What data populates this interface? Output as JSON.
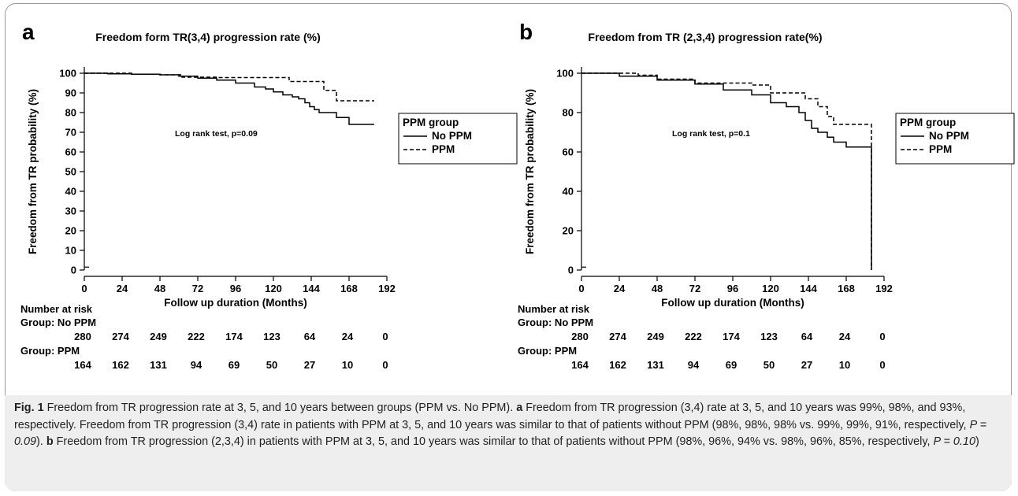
{
  "chart_data": [
    {
      "type": "line",
      "panel_label": "a",
      "title": "Freedom form TR(3,4) progression rate (%)",
      "xlabel": "Follow up duration (Months)",
      "ylabel": "Freedom from TR probability (%)",
      "xlim": [
        0,
        192
      ],
      "ylim": [
        0,
        100
      ],
      "x_ticks": [
        0,
        24,
        48,
        72,
        96,
        120,
        144,
        168,
        192
      ],
      "y_ticks": [
        0,
        10,
        20,
        30,
        40,
        50,
        60,
        70,
        80,
        90,
        100
      ],
      "annotation": "Log rank test, p=0.09",
      "legend": {
        "title": "PPM group",
        "position": "right",
        "entries": [
          {
            "label": "No PPM",
            "style": "solid"
          },
          {
            "label": "PPM",
            "style": "dashed"
          }
        ]
      },
      "series": [
        {
          "name": "No PPM",
          "style": "solid",
          "x": [
            0,
            15,
            30,
            48,
            60,
            72,
            84,
            96,
            108,
            115,
            120,
            126,
            132,
            136,
            140,
            143,
            146,
            149,
            152,
            160,
            164,
            168,
            184
          ],
          "y": [
            100,
            99.7,
            99.5,
            99.2,
            98.5,
            97.5,
            96.5,
            95,
            93,
            92,
            90.5,
            89,
            88,
            87,
            85,
            83,
            81.5,
            80,
            80,
            77.5,
            77.5,
            74,
            74
          ]
        },
        {
          "name": "PPM",
          "style": "dashed",
          "x": [
            0,
            30,
            48,
            62,
            84,
            112,
            130,
            145,
            152,
            156,
            160,
            162,
            184
          ],
          "y": [
            100,
            99.5,
            99.2,
            98,
            97.8,
            97.8,
            95.8,
            95.8,
            91.3,
            91.3,
            86,
            86,
            86
          ]
        }
      ],
      "risk_table": {
        "title": "Number at risk",
        "groups": [
          {
            "label": "Group: No PPM",
            "values": [
              "280",
              "274",
              "249",
              "222",
              "174",
              "123",
              "64",
              "24",
              "0"
            ]
          },
          {
            "label": "Group: PPM",
            "values": [
              "164",
              "162",
              "131",
              "94",
              "69",
              "50",
              "27",
              "10",
              "0"
            ]
          }
        ]
      }
    },
    {
      "type": "line",
      "panel_label": "b",
      "title": "Freedom from TR (2,3,4) progression rate(%)",
      "xlabel": "Follow up duration (Months)",
      "ylabel": "Freedom from TR probability (%)",
      "xlim": [
        0,
        192
      ],
      "ylim": [
        0,
        100
      ],
      "x_ticks": [
        0,
        24,
        48,
        72,
        96,
        120,
        144,
        168,
        192
      ],
      "y_ticks": [
        0,
        20,
        40,
        60,
        80,
        100
      ],
      "annotation": "Log rank test, p=0.1",
      "legend": {
        "title": "PPM group",
        "position": "right",
        "entries": [
          {
            "label": "No PPM",
            "style": "solid"
          },
          {
            "label": "PPM",
            "style": "dashed"
          }
        ]
      },
      "series": [
        {
          "name": "No PPM",
          "style": "solid",
          "x": [
            0,
            24,
            48,
            72,
            90,
            108,
            120,
            130,
            138,
            142,
            146,
            150,
            156,
            160,
            168,
            184
          ],
          "y": [
            100,
            98.5,
            96.5,
            94.5,
            91.5,
            89,
            85,
            83,
            80,
            76,
            72,
            70,
            67.5,
            65,
            62.5,
            62.5
          ],
          "drop_to": 0
        },
        {
          "name": "PPM",
          "style": "dashed",
          "x": [
            0,
            36,
            48,
            72,
            96,
            108,
            120,
            130,
            142,
            150,
            156,
            160,
            168,
            184
          ],
          "y": [
            100,
            99,
            97,
            95,
            95,
            94,
            90,
            90,
            87,
            83,
            78,
            74,
            74,
            74
          ],
          "drop_to": 0
        }
      ],
      "risk_table": {
        "title": "Number at risk",
        "groups": [
          {
            "label": "Group: No PPM",
            "values": [
              "280",
              "274",
              "249",
              "222",
              "174",
              "123",
              "64",
              "24",
              "0"
            ]
          },
          {
            "label": "Group: PPM",
            "values": [
              "164",
              "162",
              "131",
              "94",
              "69",
              "50",
              "27",
              "10",
              "0"
            ]
          }
        ]
      }
    }
  ],
  "caption": {
    "fig_label": "Fig. 1",
    "intro": " Freedom from TR progression rate at 3, 5, and 10 years between groups (PPM vs. No PPM). ",
    "a_label": "a",
    "a_text": " Freedom from TR progression (3,4) rate at 3, 5, and 10 years was 99%, 98%, and 93%, respectively. Freedom from TR progression (3,4) rate in patients with PPM at 3, 5, and 10 years was similar to that of patients without PPM (98%, 98%, 98% vs. 99%, 99%, 91%, respectively, ",
    "a_p": "P = 0.09",
    "a_end": "). ",
    "b_label": "b",
    "b_text": " Freedom from TR progression (2,3,4) in patients with PPM at 3, 5, and 10 years was similar to that of patients without PPM (98%, 96%, 94% vs. 98%, 96%, 85%, respectively, ",
    "b_p": "P = 0.10",
    "b_end": ")"
  }
}
